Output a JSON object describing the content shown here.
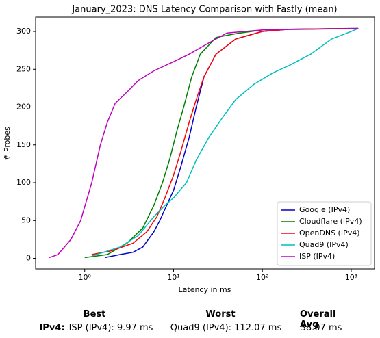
{
  "chart_data": {
    "type": "line",
    "title": "January_2023: DNS Latency Comparison with Fastly (mean)",
    "xlabel": "Latency in ms",
    "ylabel": "# Probes",
    "xscale": "log",
    "xlim": [
      0.28,
      1830
    ],
    "ylim": [
      -14,
      319
    ],
    "xticks": [
      {
        "value": 1,
        "label": "10⁰"
      },
      {
        "value": 10,
        "label": "10¹"
      },
      {
        "value": 100,
        "label": "10²"
      },
      {
        "value": 1000,
        "label": "10³"
      }
    ],
    "yticks": [
      0,
      50,
      100,
      150,
      200,
      250,
      300
    ],
    "legend": "lower right",
    "series": [
      {
        "name": "Google (IPv4)",
        "color": "#0000cc",
        "x": [
          1.7,
          2.5,
          3.5,
          4.5,
          6,
          7,
          8,
          10,
          12,
          15,
          18,
          22,
          30,
          50,
          100,
          200,
          1000,
          1200
        ],
        "values": [
          1,
          5,
          8,
          15,
          35,
          50,
          65,
          90,
          120,
          160,
          200,
          240,
          270,
          290,
          300,
          303,
          304,
          304
        ]
      },
      {
        "name": "Cloudflare (IPv4)",
        "color": "#008000",
        "x": [
          1.0,
          1.8,
          3,
          4.5,
          6,
          7.5,
          9,
          11,
          13,
          16,
          20,
          30,
          50,
          100,
          200,
          1200
        ],
        "values": [
          1,
          5,
          20,
          40,
          70,
          100,
          130,
          170,
          200,
          240,
          270,
          292,
          297,
          302,
          303,
          304
        ]
      },
      {
        "name": "OpenDNS (IPv4)",
        "color": "#ff0000",
        "x": [
          1.2,
          2,
          3.5,
          5,
          6.5,
          8,
          10,
          12,
          15,
          18,
          22,
          30,
          50,
          100,
          200,
          1200
        ],
        "values": [
          5,
          10,
          20,
          35,
          55,
          80,
          110,
          140,
          180,
          210,
          240,
          270,
          290,
          300,
          303,
          304
        ]
      },
      {
        "name": "Quad9 (IPv4)",
        "color": "#00bfbf",
        "x": [
          1.2,
          2.5,
          4,
          6,
          8,
          10,
          14,
          18,
          25,
          35,
          50,
          80,
          130,
          200,
          350,
          600,
          1000,
          1200
        ],
        "values": [
          3,
          15,
          30,
          55,
          70,
          80,
          100,
          130,
          160,
          185,
          210,
          230,
          245,
          255,
          270,
          290,
          300,
          304
        ]
      },
      {
        "name": "ISP (IPv4)",
        "color": "#bf00bf",
        "x": [
          0.4,
          0.5,
          0.7,
          0.9,
          1.2,
          1.5,
          1.8,
          2.2,
          3,
          4,
          6,
          10,
          15,
          25,
          40,
          100,
          1200
        ],
        "values": [
          1,
          5,
          25,
          50,
          100,
          150,
          180,
          205,
          220,
          235,
          248,
          260,
          270,
          285,
          298,
          302,
          304
        ]
      }
    ]
  },
  "summary": {
    "headers": [
      "Best",
      "Worst",
      "Overall Avg"
    ],
    "row_label": "IPv4:",
    "cells": [
      "ISP (IPv4): 9.97 ms",
      "Quad9 (IPv4): 112.07 ms",
      "38.07 ms"
    ]
  }
}
